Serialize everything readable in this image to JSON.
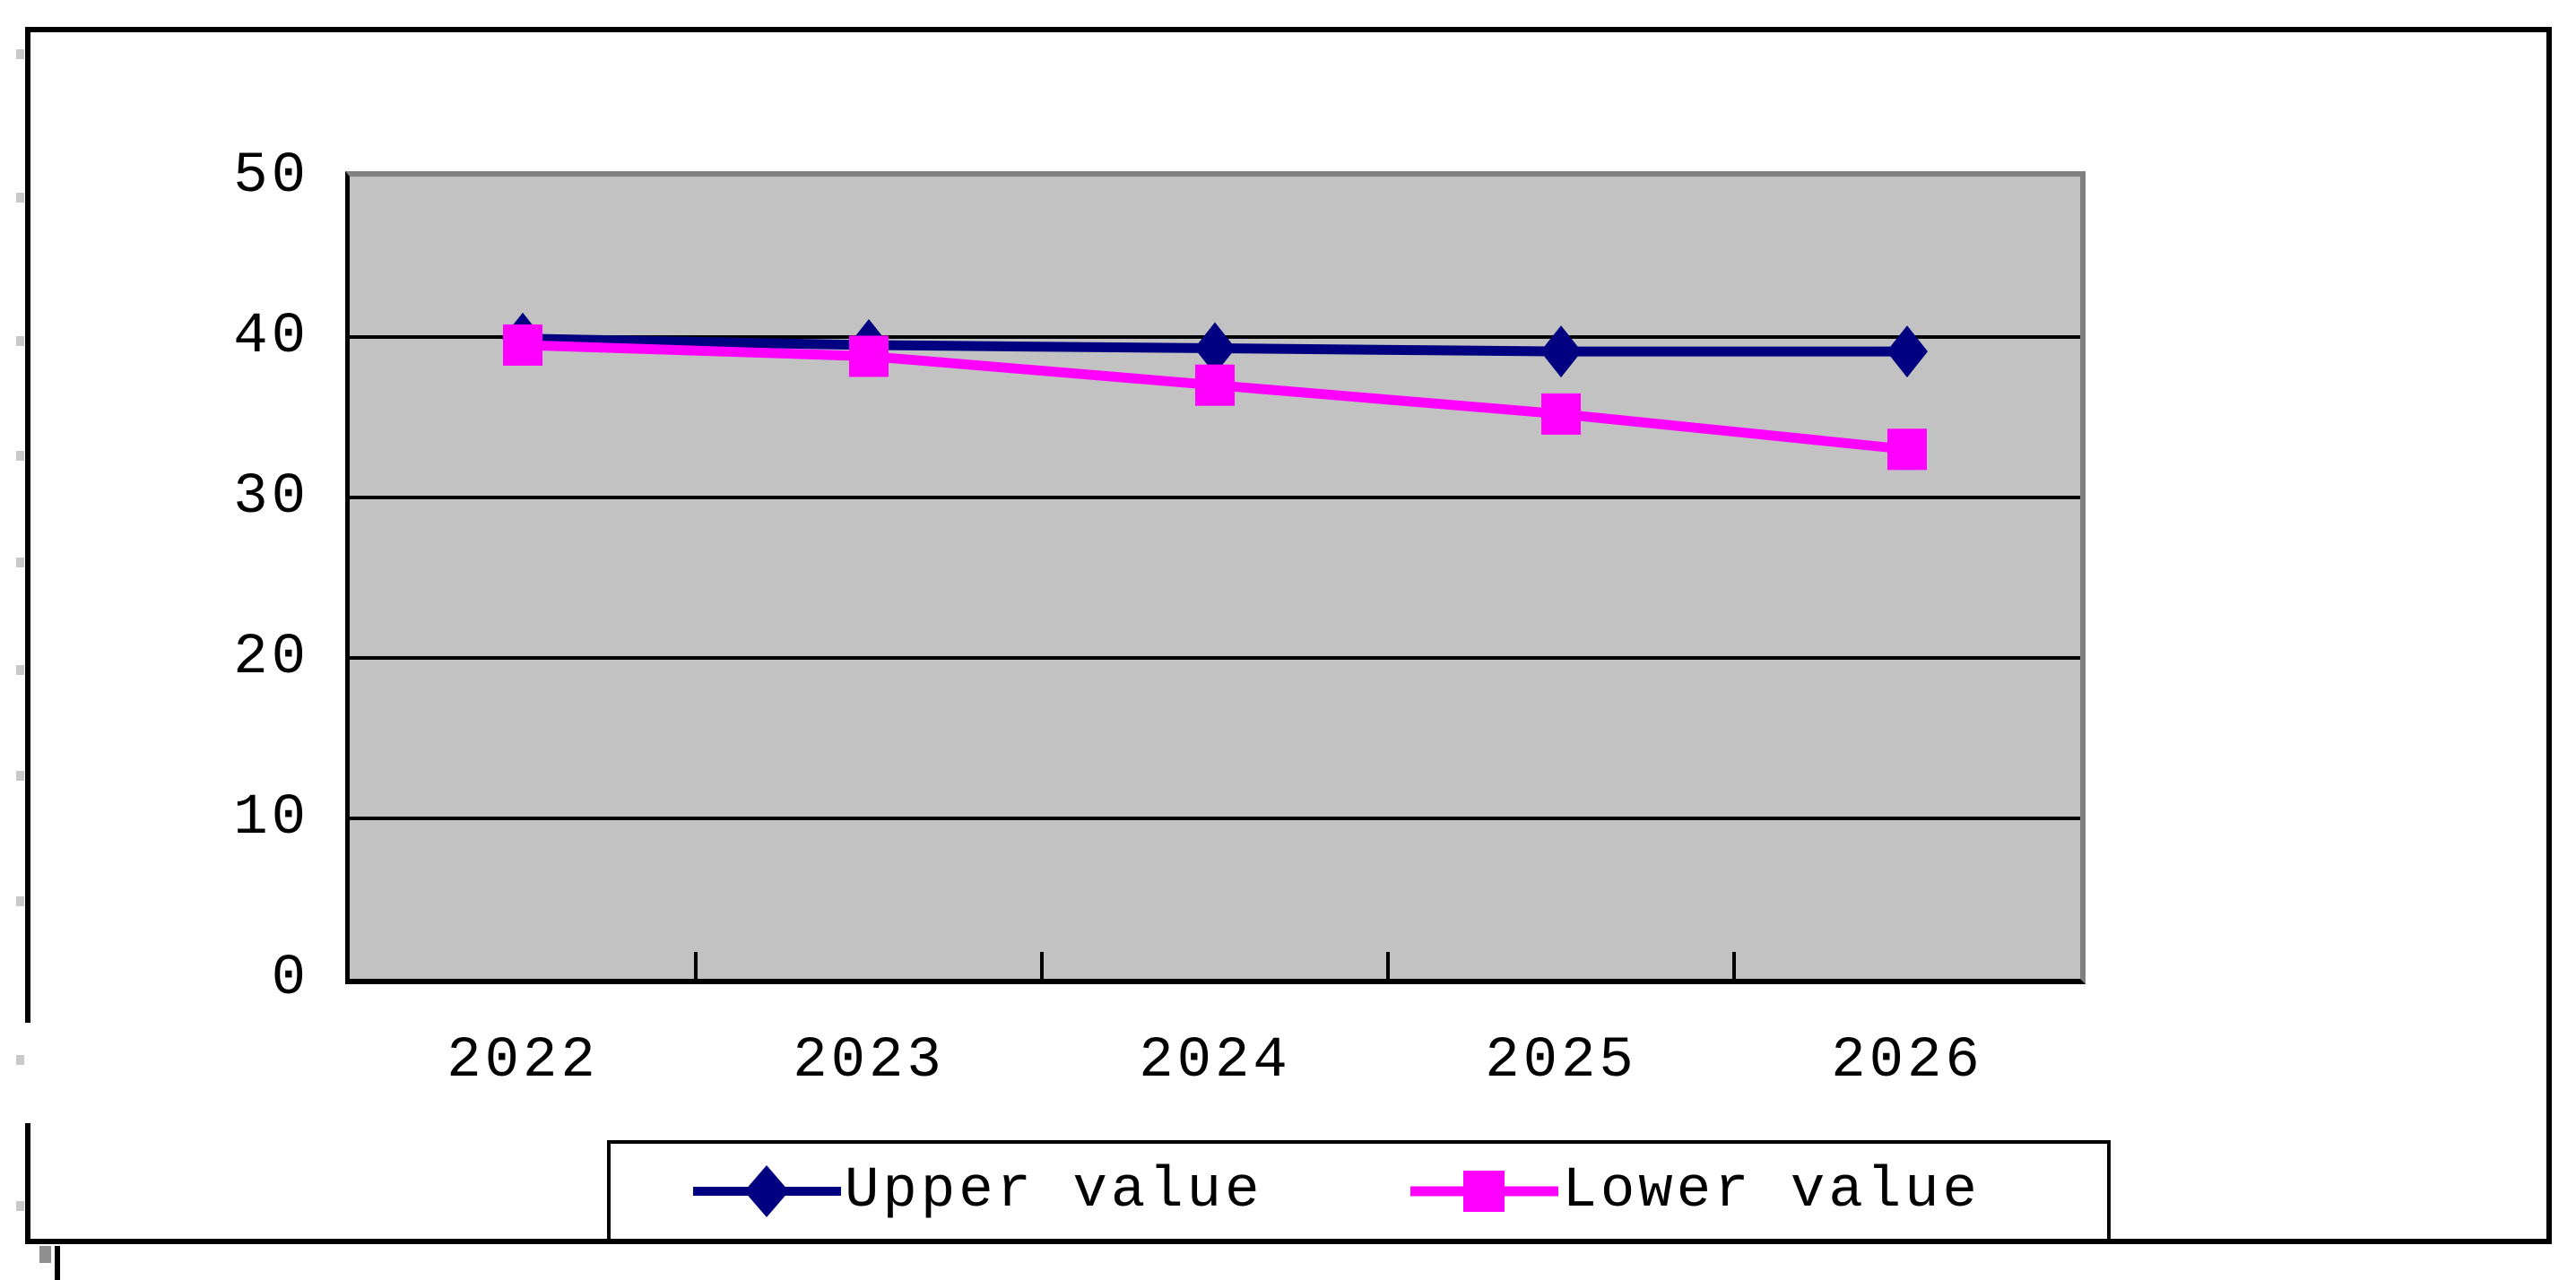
{
  "chart_data": {
    "type": "line",
    "title": "",
    "xlabel": "",
    "ylabel": "",
    "categories": [
      "2022",
      "2023",
      "2024",
      "2025",
      "2026"
    ],
    "series": [
      {
        "name": "Upper value",
        "color": "#000080",
        "marker": "diamond",
        "values": [
          39.9,
          39.5,
          39.3,
          39.1,
          39.1
        ]
      },
      {
        "name": "Lower value",
        "color": "#ff00ff",
        "marker": "square",
        "values": [
          39.5,
          38.8,
          37.0,
          35.2,
          33.0
        ]
      }
    ],
    "ylim": [
      0,
      50
    ],
    "yticks": [
      0,
      10,
      20,
      30,
      40,
      50
    ],
    "grid": true,
    "legend_position": "bottom",
    "plot_background": "#c2c2c2",
    "gridline_color": "#000000",
    "plot_border_color": "#808080",
    "axis_color": "#000000",
    "frame_color": "#000000"
  }
}
